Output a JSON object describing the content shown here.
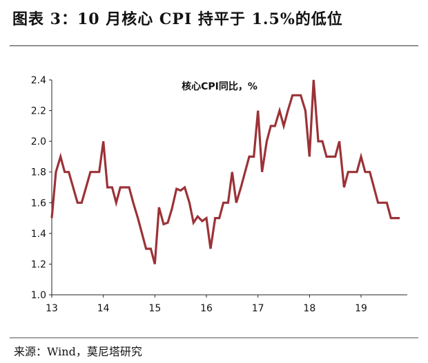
{
  "header": {
    "title": "图表 3：10 月核心 CPI 持平于 1.5%的低位"
  },
  "footer": {
    "source": "来源：Wind，莫尼塔研究"
  },
  "colors": {
    "series": "#9b3237",
    "axis": "#222222"
  },
  "chart_data": {
    "type": "line",
    "title": "核心CPI同比，%",
    "xlabel": "",
    "ylabel": "",
    "grid": false,
    "xlim": [
      13,
      19.9
    ],
    "ylim": [
      1.0,
      2.4
    ],
    "y_ticks": [
      1.0,
      1.2,
      1.4,
      1.6,
      1.8,
      2.0,
      2.2,
      2.4
    ],
    "y_tick_labels": [
      "1.0",
      "1.2",
      "1.4",
      "1.6",
      "1.8",
      "2.0",
      "2.2",
      "2.4"
    ],
    "x_ticks": [
      13,
      14,
      15,
      16,
      17,
      18,
      19
    ],
    "x_tick_labels": [
      "13",
      "14",
      "15",
      "16",
      "17",
      "18",
      "19"
    ],
    "series": [
      {
        "values": [
          [
            13.0,
            1.5
          ],
          [
            13.08,
            1.8
          ],
          [
            13.17,
            1.9
          ],
          [
            13.25,
            1.8
          ],
          [
            13.33,
            1.8
          ],
          [
            13.5,
            1.6
          ],
          [
            13.58,
            1.6
          ],
          [
            13.75,
            1.8
          ],
          [
            13.92,
            1.8
          ],
          [
            14.0,
            2.0
          ],
          [
            14.08,
            1.7
          ],
          [
            14.17,
            1.7
          ],
          [
            14.25,
            1.6
          ],
          [
            14.33,
            1.7
          ],
          [
            14.5,
            1.7
          ],
          [
            14.58,
            1.6
          ],
          [
            14.67,
            1.5
          ],
          [
            14.75,
            1.4
          ],
          [
            14.83,
            1.3
          ],
          [
            14.92,
            1.3
          ],
          [
            15.0,
            1.2
          ],
          [
            15.08,
            1.57
          ],
          [
            15.17,
            1.46
          ],
          [
            15.25,
            1.47
          ],
          [
            15.33,
            1.56
          ],
          [
            15.42,
            1.69
          ],
          [
            15.5,
            1.68
          ],
          [
            15.58,
            1.7
          ],
          [
            15.67,
            1.6
          ],
          [
            15.75,
            1.47
          ],
          [
            15.83,
            1.51
          ],
          [
            15.92,
            1.48
          ],
          [
            16.0,
            1.5
          ],
          [
            16.08,
            1.3
          ],
          [
            16.17,
            1.5
          ],
          [
            16.25,
            1.5
          ],
          [
            16.33,
            1.6
          ],
          [
            16.42,
            1.6
          ],
          [
            16.5,
            1.8
          ],
          [
            16.58,
            1.6
          ],
          [
            16.67,
            1.7
          ],
          [
            16.75,
            1.8
          ],
          [
            16.83,
            1.9
          ],
          [
            16.92,
            1.9
          ],
          [
            17.0,
            2.2
          ],
          [
            17.08,
            1.8
          ],
          [
            17.17,
            2.0
          ],
          [
            17.25,
            2.1
          ],
          [
            17.33,
            2.1
          ],
          [
            17.42,
            2.2
          ],
          [
            17.5,
            2.1
          ],
          [
            17.58,
            2.2
          ],
          [
            17.67,
            2.3
          ],
          [
            17.75,
            2.3
          ],
          [
            17.83,
            2.3
          ],
          [
            17.92,
            2.2
          ],
          [
            18.0,
            1.9
          ],
          [
            18.08,
            2.4
          ],
          [
            18.17,
            2.0
          ],
          [
            18.25,
            2.0
          ],
          [
            18.33,
            1.9
          ],
          [
            18.42,
            1.9
          ],
          [
            18.5,
            1.9
          ],
          [
            18.58,
            2.0
          ],
          [
            18.67,
            1.7
          ],
          [
            18.75,
            1.8
          ],
          [
            18.83,
            1.8
          ],
          [
            18.92,
            1.8
          ],
          [
            19.0,
            1.9
          ],
          [
            19.08,
            1.8
          ],
          [
            19.17,
            1.8
          ],
          [
            19.25,
            1.7
          ],
          [
            19.33,
            1.6
          ],
          [
            19.42,
            1.6
          ],
          [
            19.5,
            1.6
          ],
          [
            19.58,
            1.5
          ],
          [
            19.67,
            1.5
          ],
          [
            19.75,
            1.5
          ]
        ]
      }
    ]
  }
}
